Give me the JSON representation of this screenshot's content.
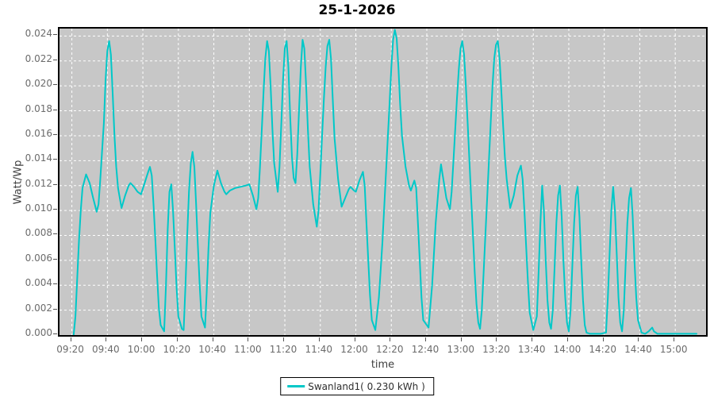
{
  "title": "25-1-2026",
  "axes": {
    "y_label": "Watt/Wp",
    "x_label": "time"
  },
  "legend": {
    "label": "Swanland1( 0.230 kWh )",
    "swatch_color": "#00c8c8"
  },
  "colors": {
    "line": "#00c8c8",
    "plot_background": "#c7c7c7",
    "gridline": "#ffffff",
    "tick_text": "#6b6b6b",
    "axis_label_text": "#3f3f3f",
    "title_text": "#000000"
  },
  "chart_data": {
    "type": "line",
    "title": "25-1-2026",
    "xlabel": "time",
    "ylabel": "Watt/Wp",
    "ylim": [
      0.0,
      0.0246
    ],
    "grid": "white dashed lines on gray plot background",
    "legend_position": "bottom-center",
    "y_ticks": [
      "0.000",
      "0.002",
      "0.004",
      "0.006",
      "0.008",
      "0.010",
      "0.012",
      "0.014",
      "0.016",
      "0.018",
      "0.020",
      "0.022",
      "0.024"
    ],
    "x_ticks": [
      "09:20",
      "09:40",
      "10:00",
      "10:20",
      "10:40",
      "11:00",
      "11:20",
      "11:40",
      "12:00",
      "12:20",
      "12:40",
      "13:00",
      "13:20",
      "13:40",
      "14:00",
      "14:20",
      "14:40",
      "15:00"
    ],
    "series": [
      {
        "name": "Swanland1( 0.230 kWh )",
        "color": "#00c8c8",
        "points": [
          [
            "09:21",
            0.0
          ],
          [
            "09:22",
            0.0015
          ],
          [
            "09:23",
            0.0045
          ],
          [
            "09:24",
            0.0075
          ],
          [
            "09:25",
            0.01
          ],
          [
            "09:26",
            0.0118
          ],
          [
            "09:28",
            0.0129
          ],
          [
            "09:30",
            0.0122
          ],
          [
            "09:32",
            0.011
          ],
          [
            "09:34",
            0.0099
          ],
          [
            "09:35",
            0.0105
          ],
          [
            "09:36",
            0.0125
          ],
          [
            "09:38",
            0.017
          ],
          [
            "09:39",
            0.0205
          ],
          [
            "09:40",
            0.0228
          ],
          [
            "09:41",
            0.0236
          ],
          [
            "09:42",
            0.0225
          ],
          [
            "09:43",
            0.0193
          ],
          [
            "09:44",
            0.016
          ],
          [
            "09:45",
            0.0135
          ],
          [
            "09:46",
            0.0118
          ],
          [
            "09:48",
            0.0102
          ],
          [
            "09:50",
            0.0112
          ],
          [
            "09:52",
            0.012
          ],
          [
            "09:53",
            0.0122
          ],
          [
            "09:55",
            0.0119
          ],
          [
            "09:57",
            0.0115
          ],
          [
            "09:59",
            0.0113
          ],
          [
            "10:01",
            0.0122
          ],
          [
            "10:03",
            0.0131
          ],
          [
            "10:04",
            0.0135
          ],
          [
            "10:05",
            0.0128
          ],
          [
            "10:06",
            0.0105
          ],
          [
            "10:07",
            0.0078
          ],
          [
            "10:08",
            0.0048
          ],
          [
            "10:09",
            0.0022
          ],
          [
            "10:10",
            0.0008
          ],
          [
            "10:12",
            0.0003
          ],
          [
            "10:13",
            0.004
          ],
          [
            "10:14",
            0.0085
          ],
          [
            "10:15",
            0.0115
          ],
          [
            "10:16",
            0.0121
          ],
          [
            "10:17",
            0.01
          ],
          [
            "10:18",
            0.007
          ],
          [
            "10:19",
            0.0038
          ],
          [
            "10:20",
            0.0015
          ],
          [
            "10:22",
            0.0005
          ],
          [
            "10:23",
            0.0004
          ],
          [
            "10:24",
            0.004
          ],
          [
            "10:25",
            0.008
          ],
          [
            "10:26",
            0.0115
          ],
          [
            "10:27",
            0.0138
          ],
          [
            "10:28",
            0.0147
          ],
          [
            "10:29",
            0.0135
          ],
          [
            "10:30",
            0.0105
          ],
          [
            "10:31",
            0.0072
          ],
          [
            "10:32",
            0.004
          ],
          [
            "10:33",
            0.0015
          ],
          [
            "10:35",
            0.0006
          ],
          [
            "10:36",
            0.0035
          ],
          [
            "10:37",
            0.007
          ],
          [
            "10:38",
            0.0098
          ],
          [
            "10:40",
            0.012
          ],
          [
            "10:42",
            0.0132
          ],
          [
            "10:44",
            0.0122
          ],
          [
            "10:46",
            0.0115
          ],
          [
            "10:47",
            0.0113
          ],
          [
            "10:49",
            0.0116
          ],
          [
            "10:52",
            0.0118
          ],
          [
            "10:55",
            0.0119
          ],
          [
            "10:58",
            0.012
          ],
          [
            "11:00",
            0.0121
          ],
          [
            "11:02",
            0.0112
          ],
          [
            "11:04",
            0.0101
          ],
          [
            "11:05",
            0.011
          ],
          [
            "11:06",
            0.0135
          ],
          [
            "11:07",
            0.0165
          ],
          [
            "11:08",
            0.0195
          ],
          [
            "11:09",
            0.0222
          ],
          [
            "11:10",
            0.0236
          ],
          [
            "11:11",
            0.0228
          ],
          [
            "11:12",
            0.02
          ],
          [
            "11:13",
            0.0165
          ],
          [
            "11:14",
            0.0138
          ],
          [
            "11:16",
            0.0115
          ],
          [
            "11:17",
            0.0135
          ],
          [
            "11:18",
            0.017
          ],
          [
            "11:19",
            0.0205
          ],
          [
            "11:20",
            0.023
          ],
          [
            "11:21",
            0.0236
          ],
          [
            "11:22",
            0.0215
          ],
          [
            "11:23",
            0.0175
          ],
          [
            "11:24",
            0.0143
          ],
          [
            "11:25",
            0.0126
          ],
          [
            "11:26",
            0.0122
          ],
          [
            "11:27",
            0.0145
          ],
          [
            "11:28",
            0.018
          ],
          [
            "11:29",
            0.0215
          ],
          [
            "11:30",
            0.0237
          ],
          [
            "11:31",
            0.023
          ],
          [
            "11:32",
            0.02
          ],
          [
            "11:33",
            0.0165
          ],
          [
            "11:34",
            0.0135
          ],
          [
            "11:36",
            0.0105
          ],
          [
            "11:38",
            0.0087
          ],
          [
            "11:39",
            0.01
          ],
          [
            "11:40",
            0.013
          ],
          [
            "11:41",
            0.016
          ],
          [
            "11:42",
            0.019
          ],
          [
            "11:43",
            0.0215
          ],
          [
            "11:44",
            0.0232
          ],
          [
            "11:45",
            0.0237
          ],
          [
            "11:46",
            0.0222
          ],
          [
            "11:47",
            0.019
          ],
          [
            "11:48",
            0.0158
          ],
          [
            "11:50",
            0.0125
          ],
          [
            "11:52",
            0.0103
          ],
          [
            "11:54",
            0.011
          ],
          [
            "11:56",
            0.0117
          ],
          [
            "11:57",
            0.0119
          ],
          [
            "11:59",
            0.0116
          ],
          [
            "12:00",
            0.0115
          ],
          [
            "12:02",
            0.0124
          ],
          [
            "12:04",
            0.0131
          ],
          [
            "12:05",
            0.012
          ],
          [
            "12:06",
            0.009
          ],
          [
            "12:07",
            0.006
          ],
          [
            "12:08",
            0.0032
          ],
          [
            "12:09",
            0.0012
          ],
          [
            "12:11",
            0.0004
          ],
          [
            "12:13",
            0.003
          ],
          [
            "12:15",
            0.0075
          ],
          [
            "12:17",
            0.013
          ],
          [
            "12:19",
            0.0185
          ],
          [
            "12:20",
            0.0215
          ],
          [
            "12:21",
            0.0237
          ],
          [
            "12:22",
            0.0245
          ],
          [
            "12:23",
            0.0238
          ],
          [
            "12:24",
            0.0215
          ],
          [
            "12:25",
            0.0185
          ],
          [
            "12:26",
            0.016
          ],
          [
            "12:28",
            0.0135
          ],
          [
            "12:30",
            0.012
          ],
          [
            "12:31",
            0.0116
          ],
          [
            "12:33",
            0.0124
          ],
          [
            "12:34",
            0.0118
          ],
          [
            "12:35",
            0.009
          ],
          [
            "12:36",
            0.006
          ],
          [
            "12:37",
            0.003
          ],
          [
            "12:38",
            0.0012
          ],
          [
            "12:41",
            0.0006
          ],
          [
            "12:43",
            0.004
          ],
          [
            "12:45",
            0.009
          ],
          [
            "12:47",
            0.0125
          ],
          [
            "12:48",
            0.0137
          ],
          [
            "12:49",
            0.0128
          ],
          [
            "12:51",
            0.011
          ],
          [
            "12:53",
            0.0101
          ],
          [
            "12:54",
            0.0115
          ],
          [
            "12:55",
            0.014
          ],
          [
            "12:56",
            0.0165
          ],
          [
            "12:57",
            0.019
          ],
          [
            "12:58",
            0.0213
          ],
          [
            "12:59",
            0.023
          ],
          [
            "13:00",
            0.0236
          ],
          [
            "13:01",
            0.0225
          ],
          [
            "13:02",
            0.02
          ],
          [
            "13:03",
            0.017
          ],
          [
            "13:04",
            0.014
          ],
          [
            "13:05",
            0.011
          ],
          [
            "13:06",
            0.008
          ],
          [
            "13:07",
            0.005
          ],
          [
            "13:08",
            0.0025
          ],
          [
            "13:09",
            0.001
          ],
          [
            "13:10",
            0.0005
          ],
          [
            "13:11",
            0.002
          ],
          [
            "13:12",
            0.005
          ],
          [
            "13:13",
            0.008
          ],
          [
            "13:14",
            0.011
          ],
          [
            "13:15",
            0.014
          ],
          [
            "13:16",
            0.017
          ],
          [
            "13:17",
            0.02
          ],
          [
            "13:18",
            0.0222
          ],
          [
            "13:19",
            0.0233
          ],
          [
            "13:20",
            0.0236
          ],
          [
            "13:21",
            0.0222
          ],
          [
            "13:22",
            0.0195
          ],
          [
            "13:23",
            0.0168
          ],
          [
            "13:24",
            0.0143
          ],
          [
            "13:25",
            0.0125
          ],
          [
            "13:27",
            0.0102
          ],
          [
            "13:29",
            0.0112
          ],
          [
            "13:31",
            0.0128
          ],
          [
            "13:33",
            0.0136
          ],
          [
            "13:34",
            0.0125
          ],
          [
            "13:35",
            0.01
          ],
          [
            "13:36",
            0.007
          ],
          [
            "13:37",
            0.0042
          ],
          [
            "13:38",
            0.0018
          ],
          [
            "13:40",
            0.0004
          ],
          [
            "13:42",
            0.0015
          ],
          [
            "13:43",
            0.005
          ],
          [
            "13:44",
            0.009
          ],
          [
            "13:45",
            0.012
          ],
          [
            "13:46",
            0.01
          ],
          [
            "13:47",
            0.006
          ],
          [
            "13:48",
            0.0028
          ],
          [
            "13:49",
            0.001
          ],
          [
            "13:50",
            0.0005
          ],
          [
            "13:51",
            0.002
          ],
          [
            "13:52",
            0.0055
          ],
          [
            "13:53",
            0.009
          ],
          [
            "13:54",
            0.0112
          ],
          [
            "13:55",
            0.012
          ],
          [
            "13:56",
            0.0095
          ],
          [
            "13:57",
            0.006
          ],
          [
            "13:58",
            0.003
          ],
          [
            "13:59",
            0.001
          ],
          [
            "14:00",
            0.0003
          ],
          [
            "14:01",
            0.002
          ],
          [
            "14:02",
            0.0055
          ],
          [
            "14:03",
            0.009
          ],
          [
            "14:04",
            0.0112
          ],
          [
            "14:05",
            0.0119
          ],
          [
            "14:06",
            0.0095
          ],
          [
            "14:07",
            0.006
          ],
          [
            "14:08",
            0.0028
          ],
          [
            "14:09",
            0.0008
          ],
          [
            "14:10",
            0.0002
          ],
          [
            "14:12",
            0.0001
          ],
          [
            "14:15",
            0.0001
          ],
          [
            "14:18",
            0.0001
          ],
          [
            "14:21",
            0.0002
          ],
          [
            "14:22",
            0.003
          ],
          [
            "14:23",
            0.0065
          ],
          [
            "14:24",
            0.01
          ],
          [
            "14:25",
            0.0119
          ],
          [
            "14:26",
            0.01
          ],
          [
            "14:27",
            0.0065
          ],
          [
            "14:28",
            0.003
          ],
          [
            "14:29",
            0.001
          ],
          [
            "14:30",
            0.0003
          ],
          [
            "14:31",
            0.002
          ],
          [
            "14:32",
            0.0055
          ],
          [
            "14:33",
            0.009
          ],
          [
            "14:34",
            0.011
          ],
          [
            "14:35",
            0.0118
          ],
          [
            "14:36",
            0.0095
          ],
          [
            "14:37",
            0.006
          ],
          [
            "14:38",
            0.003
          ],
          [
            "14:39",
            0.0012
          ],
          [
            "14:41",
            0.0002
          ],
          [
            "14:43",
            0.0001
          ],
          [
            "14:45",
            0.0003
          ],
          [
            "14:47",
            0.0006
          ],
          [
            "14:48",
            0.0003
          ],
          [
            "14:50",
            0.0001
          ],
          [
            "14:55",
            0.0001
          ],
          [
            "15:00",
            0.0001
          ],
          [
            "15:05",
            0.0001
          ],
          [
            "15:12",
            0.0001
          ]
        ]
      }
    ]
  }
}
